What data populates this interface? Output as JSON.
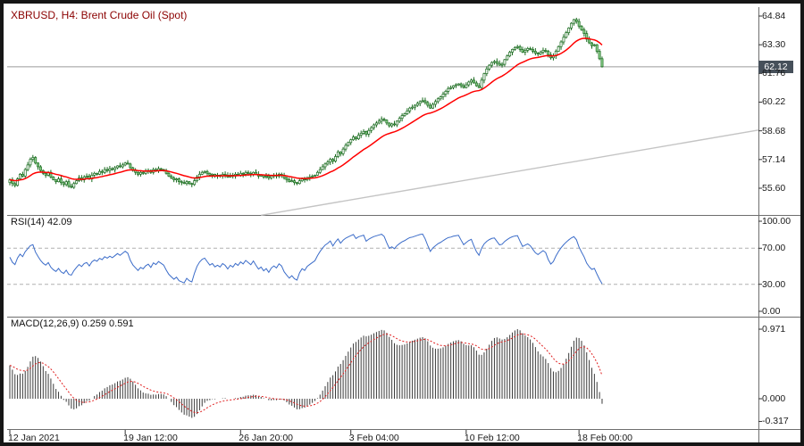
{
  "window": {
    "symbol_label": "XBRUSD, H4:  Brent Crude Oil (Spot)"
  },
  "panels": {
    "main": {
      "price_axis": [
        {
          "text": "64.84",
          "value": 64.84
        },
        {
          "text": "63.30",
          "value": 63.3
        },
        {
          "text": "61.76",
          "value": 61.76
        },
        {
          "text": "60.22",
          "value": 60.22
        },
        {
          "text": "58.68",
          "value": 58.68
        },
        {
          "text": "57.14",
          "value": 57.14
        },
        {
          "text": "55.60",
          "value": 55.6
        }
      ],
      "current_price": {
        "text": "62.12",
        "value": 62.12
      }
    },
    "rsi": {
      "label": "RSI(14) 42.09",
      "axis": [
        {
          "text": "100.00",
          "value": 100
        },
        {
          "text": "70.00",
          "value": 70
        },
        {
          "text": "30.00",
          "value": 30
        },
        {
          "text": "0.00",
          "value": 0
        }
      ],
      "levels": [
        70,
        30
      ]
    },
    "macd": {
      "label": "MACD(12,26,9) 0.259 0.591",
      "axis": [
        {
          "text": "0.971",
          "value": 0.971
        },
        {
          "text": "0.000",
          "value": 0
        },
        {
          "text": "-0.317",
          "value": -0.317
        }
      ]
    }
  },
  "time_axis": [
    {
      "text": "12 Jan 2021",
      "bar": 0
    },
    {
      "text": "19 Jan 12:00",
      "bar": 45
    },
    {
      "text": "26 Jan 20:00",
      "bar": 90
    },
    {
      "text": "3 Feb 04:00",
      "bar": 133
    },
    {
      "text": "10 Feb 12:00",
      "bar": 178
    },
    {
      "text": "18 Feb 00:00",
      "bar": 222
    }
  ],
  "colors": {
    "candle_up_fill": "#ffffff",
    "candle_down_fill": "#8fd48f",
    "candle_border": "#17691c",
    "ma_line": "#ff0000",
    "rsi_line": "#3b6cc9",
    "rsi_level_dash": "#b0b0b0",
    "macd_histogram": "#3a3a3a",
    "macd_signal": "#e02020",
    "trendline": "#c4c4c4",
    "price_line": "#9a9a9a",
    "separator": "#6e6e6e",
    "badge_bg": "#46505a",
    "tick": "#333333"
  },
  "chart_data": {
    "type": "candlestick",
    "symbol": "XBRUSD",
    "timeframe": "H4",
    "title": "XBRUSD, H4: Brent Crude Oil (Spot)",
    "price_range": [
      55.6,
      64.84
    ],
    "last_price": 62.12,
    "x_axis_labels": [
      "12 Jan 2021",
      "19 Jan 12:00",
      "26 Jan 20:00",
      "3 Feb 04:00",
      "10 Feb 12:00",
      "18 Feb 00:00"
    ],
    "closes": [
      56.05,
      55.85,
      55.75,
      56.1,
      56.35,
      56.25,
      56.6,
      56.85,
      57.15,
      57.25,
      56.95,
      56.75,
      56.55,
      56.4,
      56.3,
      56.45,
      56.2,
      56.05,
      55.95,
      56.1,
      55.9,
      55.8,
      55.95,
      55.7,
      55.65,
      55.85,
      56.0,
      56.15,
      56.05,
      56.2,
      56.25,
      56.1,
      56.3,
      56.4,
      56.35,
      56.5,
      56.45,
      56.6,
      56.55,
      56.65,
      56.6,
      56.7,
      56.8,
      56.75,
      56.85,
      56.95,
      56.9,
      56.7,
      56.55,
      56.45,
      56.35,
      56.45,
      56.4,
      56.5,
      56.55,
      56.45,
      56.6,
      56.55,
      56.65,
      56.6,
      56.55,
      56.4,
      56.25,
      56.15,
      56.05,
      56.1,
      55.95,
      55.9,
      55.85,
      55.95,
      55.85,
      55.8,
      56.0,
      56.2,
      56.35,
      56.45,
      56.5,
      56.4,
      56.3,
      56.35,
      56.25,
      56.3,
      56.25,
      56.35,
      56.3,
      56.2,
      56.3,
      56.25,
      56.35,
      56.3,
      56.4,
      56.35,
      56.45,
      56.4,
      56.35,
      56.45,
      56.35,
      56.25,
      56.3,
      56.2,
      56.25,
      56.15,
      56.25,
      56.3,
      56.25,
      56.35,
      56.3,
      56.15,
      56.05,
      55.95,
      56.0,
      55.9,
      55.85,
      56.0,
      56.1,
      56.05,
      56.15,
      56.2,
      56.25,
      56.3,
      56.45,
      56.6,
      56.75,
      56.9,
      57.0,
      57.15,
      57.05,
      57.3,
      57.55,
      57.45,
      57.7,
      57.9,
      58.05,
      58.2,
      58.35,
      58.25,
      58.45,
      58.55,
      58.65,
      58.5,
      58.7,
      58.85,
      59.0,
      59.1,
      59.2,
      59.3,
      59.25,
      59.1,
      58.95,
      59.05,
      59.0,
      59.2,
      59.35,
      59.5,
      59.6,
      59.75,
      59.9,
      59.95,
      60.05,
      60.15,
      60.25,
      60.3,
      60.2,
      60.05,
      59.9,
      60.1,
      60.25,
      60.4,
      60.5,
      60.65,
      60.8,
      60.95,
      61.0,
      61.1,
      61.15,
      61.2,
      61.1,
      61.0,
      61.15,
      61.3,
      61.4,
      61.25,
      61.1,
      61.0,
      61.4,
      61.75,
      62.0,
      62.2,
      62.35,
      62.4,
      62.3,
      62.2,
      62.25,
      62.5,
      62.7,
      62.9,
      63.05,
      63.15,
      63.2,
      63.05,
      62.9,
      63.0,
      63.1,
      63.05,
      62.95,
      62.85,
      62.8,
      62.9,
      63.0,
      62.95,
      62.75,
      62.6,
      62.7,
      62.95,
      63.2,
      63.45,
      63.7,
      63.95,
      64.2,
      64.45,
      64.65,
      64.55,
      64.3,
      64.1,
      63.9,
      63.6,
      63.4,
      63.25,
      63.3,
      62.95,
      62.55,
      62.12
    ],
    "indicators": {
      "ma": {
        "type": "ema",
        "period": 20,
        "color": "#ff0000"
      },
      "rsi": {
        "period": 14,
        "last": 42.09,
        "levels": [
          70,
          30
        ]
      },
      "macd": {
        "fast": 12,
        "slow": 26,
        "signal": 9,
        "last": 0.259,
        "signal_last": 0.591,
        "scale_max": 0.971,
        "scale_min": -0.317
      }
    },
    "trendline": {
      "bar1": 98,
      "price1": 54.15,
      "bar2": 292,
      "price2": 58.72
    }
  }
}
